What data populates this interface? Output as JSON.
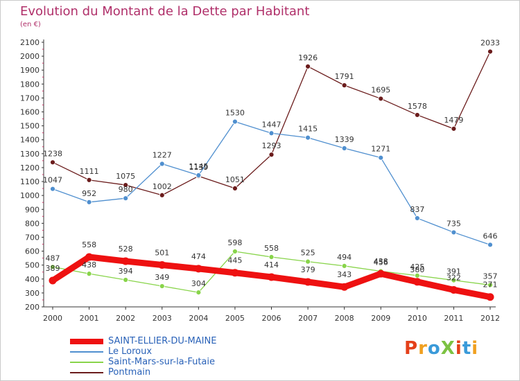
{
  "title": "Evolution du Montant de la Dette par Habitant",
  "subtitle": "(en €)",
  "logo": {
    "text": "ProXiti",
    "letter_colors": [
      "#e4401a",
      "#f0a020",
      "#3a9ad9",
      "#7cc242",
      "#e4401a",
      "#3a9ad9",
      "#f0a020"
    ]
  },
  "chart_data": {
    "type": "line",
    "x": [
      "2000",
      "2001",
      "2002",
      "2003",
      "2004",
      "2005",
      "2006",
      "2007",
      "2008",
      "2009",
      "2010",
      "2011",
      "2012"
    ],
    "ylim": [
      200,
      2100
    ],
    "yticks": [
      200,
      300,
      400,
      500,
      600,
      700,
      800,
      900,
      1000,
      1100,
      1200,
      1300,
      1400,
      1500,
      1600,
      1700,
      1800,
      1900,
      2000,
      2100
    ],
    "grid": false,
    "legend_position": "bottom-left",
    "series": [
      {
        "name": "SAINT-ELLIER-DU-MAINE",
        "color": "#ee1111",
        "values": [
          389,
          558,
          528,
          501,
          474,
          445,
          414,
          379,
          343,
          438,
          380,
          322,
          271
        ]
      },
      {
        "name": "Le Loroux",
        "color": "#4f8fcf",
        "values": [
          1047,
          952,
          980,
          1227,
          1145,
          1530,
          1447,
          1415,
          1339,
          1271,
          837,
          735,
          646
        ]
      },
      {
        "name": "Saint-Mars-sur-la-Futaie",
        "color": "#88d44a",
        "values": [
          487,
          438,
          394,
          349,
          304,
          598,
          558,
          525,
          494,
          456,
          425,
          391,
          357
        ]
      },
      {
        "name": "Pontmain",
        "color": "#6b1c1c",
        "values": [
          1238,
          1111,
          1075,
          1002,
          1139,
          1051,
          1293,
          1926,
          1791,
          1695,
          1578,
          1479,
          2033
        ]
      }
    ]
  }
}
